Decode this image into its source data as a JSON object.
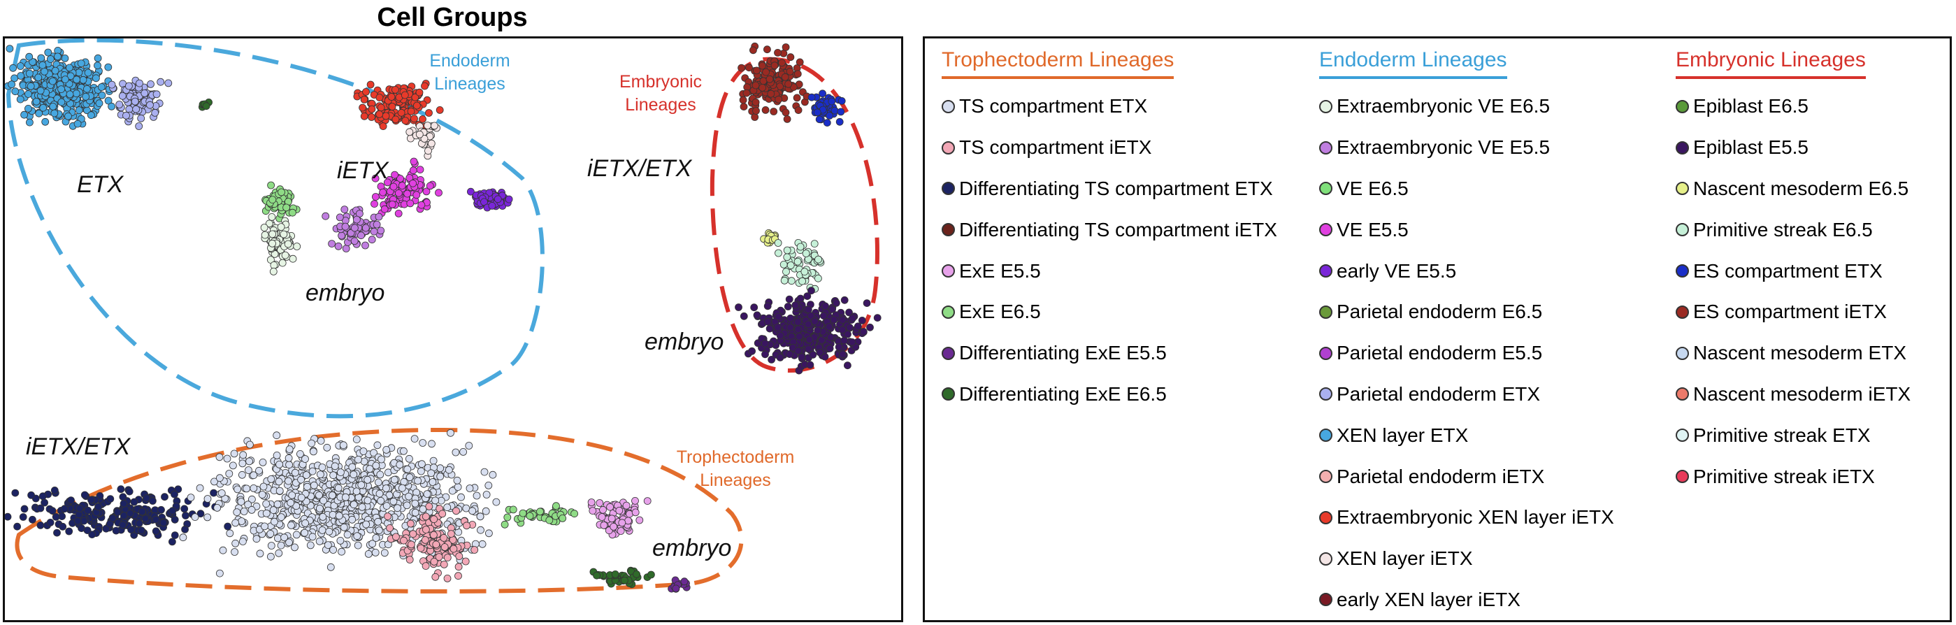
{
  "title": "Cell Groups",
  "plot": {
    "group_labels": [
      "ETX",
      "iETX",
      "iETX/ETX",
      "embryo",
      "embryo",
      "iETX/ETX",
      "embryo"
    ],
    "lineage_labels": [
      {
        "line1": "Endoderm",
        "line2": "Lineages",
        "color": "#3a9fd8"
      },
      {
        "line1": "Embryonic",
        "line2": "Lineages",
        "color": "#d6312b"
      },
      {
        "line1": "Trophectoderm",
        "line2": "Lineages",
        "color": "#e0692a"
      }
    ],
    "outline_colors": {
      "endoderm": "#4aa8dc",
      "embryonic": "#d6312b",
      "trophectoderm": "#e36d2c"
    }
  },
  "legend": {
    "columns": [
      {
        "heading": "Trophectoderm Lineages",
        "color": "#e0692a",
        "items": [
          {
            "label": "TS compartment ETX",
            "color": "#d8dff0"
          },
          {
            "label": "TS compartment iETX",
            "color": "#f2a7b6"
          },
          {
            "label": "Differentiating TS compartment ETX",
            "color": "#1c2362"
          },
          {
            "label": "Differentiating TS compartment iETX",
            "color": "#6b231c"
          },
          {
            "label": "ExE E5.5",
            "color": "#e7a2ea"
          },
          {
            "label": "ExE E6.5",
            "color": "#8fdc86"
          },
          {
            "label": "Differentiating ExE E5.5",
            "color": "#6a2a92"
          },
          {
            "label": "Differentiating ExE E6.5",
            "color": "#2f6a2a"
          }
        ]
      },
      {
        "heading": "Endoderm Lineages",
        "color": "#3a9fd8",
        "items": [
          {
            "label": "Extraembryonic VE E6.5",
            "color": "#e6f4e4"
          },
          {
            "label": "Extraembryonic VE E5.5",
            "color": "#c07ee0"
          },
          {
            "label": "VE E6.5",
            "color": "#7fe07a"
          },
          {
            "label": "VE E5.5",
            "color": "#e040e0"
          },
          {
            "label": "early VE E5.5",
            "color": "#7a26d8"
          },
          {
            "label": "Parietal endoderm E6.5",
            "color": "#6a9a3a"
          },
          {
            "label": "Parietal endoderm E5.5",
            "color": "#b040d0"
          },
          {
            "label": "Parietal endoderm ETX",
            "color": "#aab0f0"
          },
          {
            "label": "XEN layer ETX",
            "color": "#47a7e0"
          },
          {
            "label": "Parietal endoderm iETX",
            "color": "#f4b0b0"
          },
          {
            "label": "Extraembryonic XEN layer iETX",
            "color": "#e83a2a"
          },
          {
            "label": "XEN layer iETX",
            "color": "#f4e6e6"
          },
          {
            "label": "early XEN layer iETX",
            "color": "#7a1a24"
          }
        ]
      },
      {
        "heading": "Embryonic Lineages",
        "color": "#d6312b",
        "items": [
          {
            "label": "Epiblast E6.5",
            "color": "#5a9a3a"
          },
          {
            "label": "Epiblast E5.5",
            "color": "#3a1660"
          },
          {
            "label": "Nascent mesoderm E6.5",
            "color": "#e6f08a"
          },
          {
            "label": "Primitive streak E6.5",
            "color": "#c6f0d8"
          },
          {
            "label": "ES compartment ETX",
            "color": "#1a2ec8"
          },
          {
            "label": "ES compartment iETX",
            "color": "#9a2a22"
          },
          {
            "label": "Nascent mesoderm ETX",
            "color": "#c6d8f0"
          },
          {
            "label": "Nascent mesoderm iETX",
            "color": "#ec7a6a"
          },
          {
            "label": "Primitive streak ETX",
            "color": "#dff4f4"
          },
          {
            "label": "Primitive streak iETX",
            "color": "#e83a5a"
          }
        ]
      }
    ]
  }
}
